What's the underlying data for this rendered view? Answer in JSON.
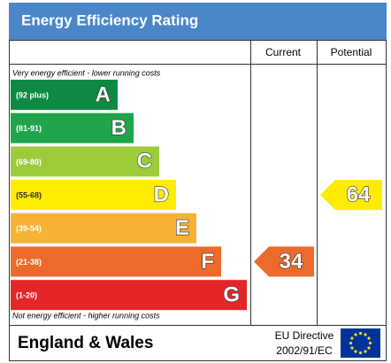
{
  "header": {
    "title": "Energy Efficiency Rating",
    "current": "Current",
    "potential": "Potential"
  },
  "notes": {
    "top": "Very energy efficient - lower running costs",
    "bottom": "Not energy efficient - higher running costs"
  },
  "bands": [
    {
      "range": "(92 plus)",
      "letter": "A",
      "color": "#0c8a43"
    },
    {
      "range": "(81-91)",
      "letter": "B",
      "color": "#20a54a"
    },
    {
      "range": "(69-80)",
      "letter": "C",
      "color": "#9dcb3c"
    },
    {
      "range": "(55-68)",
      "letter": "D",
      "color": "#ffed00"
    },
    {
      "range": "(39-54)",
      "letter": "E",
      "color": "#f5b233"
    },
    {
      "range": "(21-38)",
      "letter": "F",
      "color": "#ec6b2a"
    },
    {
      "range": "(1-20)",
      "letter": "G",
      "color": "#e52628"
    }
  ],
  "ratings": {
    "current": {
      "value": 34,
      "color": "#ec6b2a"
    },
    "potential": {
      "value": 64,
      "color": "#ffed00"
    }
  },
  "footer": {
    "region": "England & Wales",
    "directive": "EU Directive",
    "code": "2002/91/EC"
  }
}
